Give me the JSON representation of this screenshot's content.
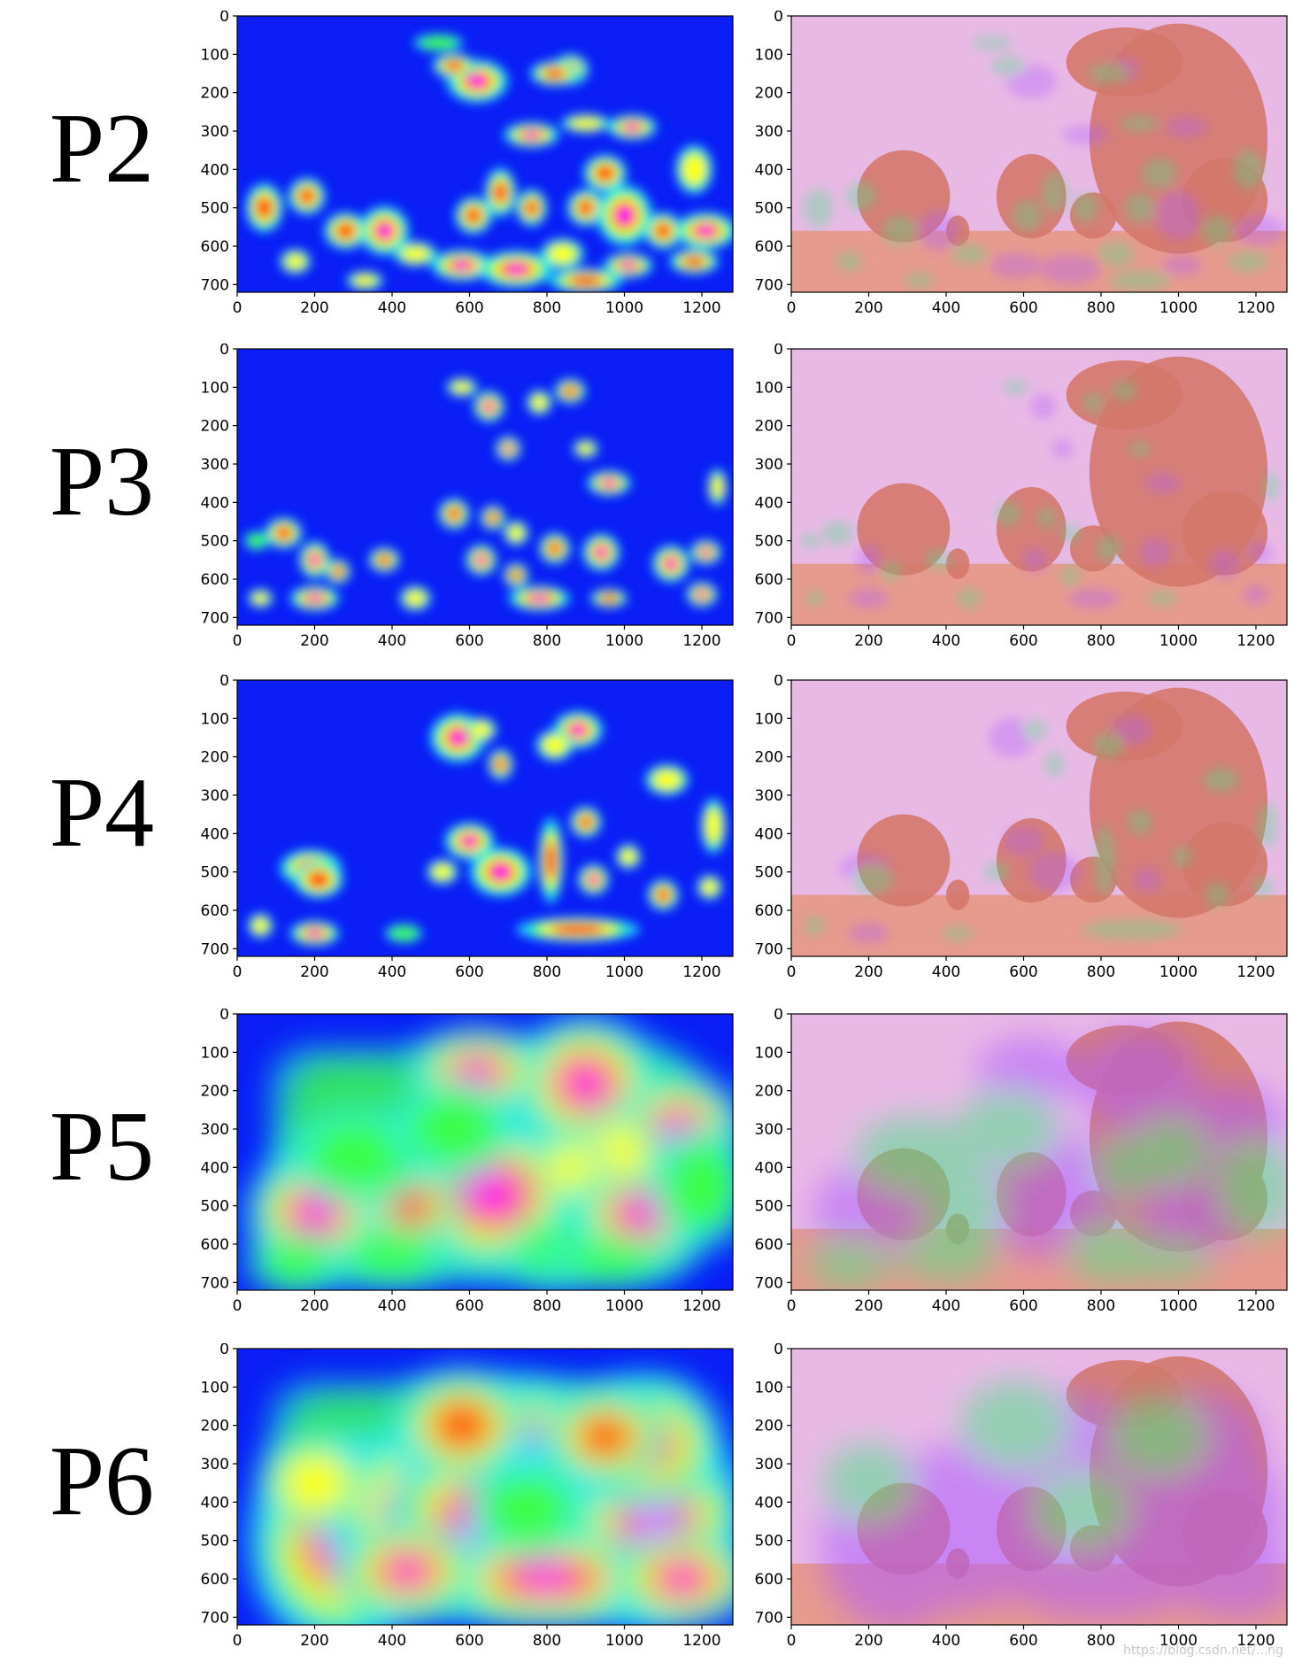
{
  "figure": {
    "rows": [
      {
        "label": "P2",
        "heat_blobs": [
          [
            520,
            70,
            40,
            14,
            0.6
          ],
          [
            620,
            170,
            50,
            35,
            0.95
          ],
          [
            560,
            130,
            35,
            20,
            0.8
          ],
          [
            860,
            140,
            30,
            25,
            0.9
          ],
          [
            820,
            150,
            40,
            20,
            0.8
          ],
          [
            760,
            310,
            45,
            20,
            0.95
          ],
          [
            1020,
            290,
            40,
            20,
            0.9
          ],
          [
            900,
            280,
            40,
            15,
            0.7
          ],
          [
            950,
            410,
            35,
            30,
            0.8
          ],
          [
            1180,
            400,
            30,
            40,
            0.7
          ],
          [
            680,
            460,
            25,
            40,
            0.8
          ],
          [
            760,
            500,
            25,
            30,
            0.85
          ],
          [
            900,
            500,
            30,
            30,
            0.85
          ],
          [
            1000,
            520,
            45,
            50,
            0.9
          ],
          [
            1210,
            560,
            50,
            30,
            1.0
          ],
          [
            1100,
            560,
            30,
            30,
            0.8
          ],
          [
            70,
            500,
            30,
            40,
            0.8
          ],
          [
            180,
            470,
            30,
            30,
            0.8
          ],
          [
            280,
            560,
            35,
            30,
            0.85
          ],
          [
            380,
            560,
            40,
            40,
            0.9
          ],
          [
            460,
            620,
            35,
            20,
            0.7
          ],
          [
            580,
            650,
            50,
            25,
            0.9
          ],
          [
            720,
            660,
            60,
            30,
            0.9
          ],
          [
            900,
            690,
            60,
            20,
            0.8
          ],
          [
            1010,
            650,
            40,
            20,
            0.9
          ],
          [
            1180,
            640,
            40,
            20,
            0.8
          ],
          [
            150,
            640,
            25,
            20,
            0.7
          ],
          [
            330,
            690,
            30,
            15,
            0.7
          ],
          [
            610,
            520,
            30,
            30,
            0.85
          ],
          [
            840,
            620,
            35,
            25,
            0.75
          ]
        ]
      },
      {
        "label": "P3",
        "heat_blobs": [
          [
            580,
            100,
            25,
            15,
            0.7
          ],
          [
            650,
            150,
            25,
            25,
            0.95
          ],
          [
            860,
            110,
            25,
            20,
            0.8
          ],
          [
            780,
            140,
            20,
            20,
            0.75
          ],
          [
            700,
            260,
            20,
            20,
            0.9
          ],
          [
            900,
            260,
            20,
            15,
            0.7
          ],
          [
            960,
            350,
            35,
            20,
            0.9
          ],
          [
            1240,
            360,
            15,
            30,
            0.7
          ],
          [
            560,
            430,
            25,
            25,
            0.85
          ],
          [
            660,
            440,
            20,
            20,
            0.8
          ],
          [
            720,
            480,
            20,
            20,
            0.75
          ],
          [
            820,
            520,
            25,
            25,
            0.85
          ],
          [
            940,
            530,
            30,
            30,
            0.9
          ],
          [
            1120,
            560,
            30,
            30,
            0.95
          ],
          [
            1210,
            530,
            25,
            20,
            0.9
          ],
          [
            120,
            480,
            30,
            25,
            0.8
          ],
          [
            200,
            550,
            25,
            30,
            0.9
          ],
          [
            260,
            580,
            20,
            20,
            0.8
          ],
          [
            380,
            550,
            25,
            20,
            0.8
          ],
          [
            630,
            550,
            25,
            25,
            0.95
          ],
          [
            720,
            590,
            20,
            20,
            0.85
          ],
          [
            460,
            650,
            25,
            20,
            0.75
          ],
          [
            780,
            650,
            50,
            20,
            0.9
          ],
          [
            960,
            650,
            30,
            15,
            0.8
          ],
          [
            200,
            650,
            40,
            20,
            0.9
          ],
          [
            1200,
            640,
            25,
            20,
            0.9
          ],
          [
            60,
            650,
            20,
            15,
            0.7
          ],
          [
            50,
            500,
            20,
            15,
            0.6
          ]
        ]
      },
      {
        "label": "P4",
        "heat_blobs": [
          [
            570,
            150,
            45,
            40,
            0.9
          ],
          [
            630,
            130,
            25,
            20,
            0.7
          ],
          [
            880,
            130,
            40,
            30,
            0.95
          ],
          [
            820,
            170,
            30,
            25,
            0.75
          ],
          [
            680,
            220,
            20,
            25,
            0.8
          ],
          [
            1110,
            260,
            35,
            25,
            0.7
          ],
          [
            900,
            370,
            25,
            25,
            0.8
          ],
          [
            1230,
            380,
            20,
            45,
            0.75
          ],
          [
            600,
            420,
            40,
            30,
            0.9
          ],
          [
            680,
            500,
            50,
            40,
            0.95
          ],
          [
            810,
            470,
            20,
            70,
            0.85
          ],
          [
            920,
            520,
            25,
            25,
            0.9
          ],
          [
            1010,
            460,
            20,
            20,
            0.7
          ],
          [
            1100,
            560,
            25,
            25,
            0.85
          ],
          [
            530,
            500,
            25,
            20,
            0.7
          ],
          [
            190,
            490,
            50,
            30,
            1.0
          ],
          [
            210,
            520,
            40,
            30,
            0.85
          ],
          [
            200,
            660,
            40,
            20,
            0.9
          ],
          [
            60,
            640,
            20,
            20,
            0.7
          ],
          [
            880,
            650,
            100,
            20,
            0.85
          ],
          [
            1220,
            540,
            20,
            20,
            0.75
          ],
          [
            430,
            660,
            30,
            15,
            0.55
          ]
        ]
      },
      {
        "label": "P5",
        "heat_blobs": [
          [
            200,
            520,
            110,
            100,
            1.0
          ],
          [
            660,
            470,
            150,
            130,
            1.0
          ],
          [
            900,
            180,
            120,
            110,
            1.0
          ],
          [
            620,
            150,
            110,
            70,
            0.95
          ],
          [
            1140,
            300,
            110,
            90,
            1.0
          ],
          [
            1040,
            520,
            110,
            90,
            0.95
          ],
          [
            980,
            360,
            80,
            70,
            0.7
          ],
          [
            450,
            500,
            80,
            80,
            0.8
          ],
          [
            320,
            370,
            120,
            80,
            0.55
          ],
          [
            560,
            300,
            100,
            80,
            0.6
          ],
          [
            1200,
            450,
            80,
            100,
            0.6
          ],
          [
            820,
            620,
            80,
            60,
            0.6
          ],
          [
            150,
            650,
            80,
            50,
            0.6
          ],
          [
            400,
            630,
            100,
            50,
            0.5
          ],
          [
            860,
            400,
            60,
            60,
            0.75
          ],
          [
            960,
            640,
            100,
            40,
            0.55
          ]
        ]
      },
      {
        "label": "P6",
        "heat_blobs": [
          [
            270,
            500,
            150,
            180,
            0.95
          ],
          [
            480,
            440,
            160,
            160,
            1.0
          ],
          [
            700,
            250,
            180,
            110,
            0.95
          ],
          [
            620,
            450,
            150,
            140,
            1.0
          ],
          [
            900,
            450,
            150,
            160,
            0.95
          ],
          [
            1080,
            450,
            150,
            180,
            1.0
          ],
          [
            1050,
            250,
            130,
            110,
            0.9
          ],
          [
            800,
            600,
            200,
            80,
            0.9
          ],
          [
            440,
            580,
            120,
            80,
            0.9
          ],
          [
            580,
            200,
            110,
            90,
            0.85
          ],
          [
            950,
            230,
            100,
            80,
            0.8
          ],
          [
            200,
            350,
            90,
            80,
            0.75
          ],
          [
            1150,
            600,
            120,
            80,
            0.9
          ],
          [
            750,
            420,
            100,
            80,
            0.55
          ]
        ]
      }
    ],
    "watermark": "https://blog.csdn.net/...ng"
  },
  "chart_data": [
    {
      "type": "heatmap",
      "title": "",
      "row_label": "P2",
      "view": "feature heatmap",
      "xlim": [
        0,
        1280
      ],
      "ylim": [
        0,
        720
      ],
      "y_inverted": true,
      "xticks": [
        0,
        200,
        400,
        600,
        800,
        1000,
        1200
      ],
      "yticks": [
        0,
        100,
        200,
        300,
        400,
        500,
        600,
        700
      ],
      "colormap": "jet-like (blue→cyan→green→yellow→red→magenta)"
    },
    {
      "type": "heatmap",
      "title": "",
      "row_label": "P2",
      "view": "heatmap overlay on image",
      "xlim": [
        0,
        1280
      ],
      "ylim": [
        0,
        720
      ],
      "y_inverted": true,
      "xticks": [
        0,
        200,
        400,
        600,
        800,
        1000,
        1200
      ],
      "yticks": [
        0,
        100,
        200,
        300,
        400,
        500,
        600,
        700
      ]
    },
    {
      "type": "heatmap",
      "title": "",
      "row_label": "P3",
      "view": "feature heatmap",
      "xlim": [
        0,
        1280
      ],
      "ylim": [
        0,
        720
      ],
      "y_inverted": true,
      "xticks": [
        0,
        200,
        400,
        600,
        800,
        1000,
        1200
      ],
      "yticks": [
        0,
        100,
        200,
        300,
        400,
        500,
        600,
        700
      ]
    },
    {
      "type": "heatmap",
      "title": "",
      "row_label": "P3",
      "view": "heatmap overlay on image",
      "xlim": [
        0,
        1280
      ],
      "ylim": [
        0,
        720
      ],
      "y_inverted": true,
      "xticks": [
        0,
        200,
        400,
        600,
        800,
        1000,
        1200
      ],
      "yticks": [
        0,
        100,
        200,
        300,
        400,
        500,
        600,
        700
      ]
    },
    {
      "type": "heatmap",
      "title": "",
      "row_label": "P4",
      "view": "feature heatmap",
      "xlim": [
        0,
        1280
      ],
      "ylim": [
        0,
        720
      ],
      "y_inverted": true,
      "xticks": [
        0,
        200,
        400,
        600,
        800,
        1000,
        1200
      ],
      "yticks": [
        0,
        100,
        200,
        300,
        400,
        500,
        600,
        700
      ]
    },
    {
      "type": "heatmap",
      "title": "",
      "row_label": "P4",
      "view": "heatmap overlay on image",
      "xlim": [
        0,
        1280
      ],
      "ylim": [
        0,
        720
      ],
      "y_inverted": true,
      "xticks": [
        0,
        200,
        400,
        600,
        800,
        1000,
        1200
      ],
      "yticks": [
        0,
        100,
        200,
        300,
        400,
        500,
        600,
        700
      ]
    },
    {
      "type": "heatmap",
      "title": "",
      "row_label": "P5",
      "view": "feature heatmap",
      "xlim": [
        0,
        1280
      ],
      "ylim": [
        0,
        720
      ],
      "y_inverted": true,
      "xticks": [
        0,
        200,
        400,
        600,
        800,
        1000,
        1200
      ],
      "yticks": [
        0,
        100,
        200,
        300,
        400,
        500,
        600,
        700
      ]
    },
    {
      "type": "heatmap",
      "title": "",
      "row_label": "P5",
      "view": "heatmap overlay on image",
      "xlim": [
        0,
        1280
      ],
      "ylim": [
        0,
        720
      ],
      "y_inverted": true,
      "xticks": [
        0,
        200,
        400,
        600,
        800,
        1000,
        1200
      ],
      "yticks": [
        0,
        100,
        200,
        300,
        400,
        500,
        600,
        700
      ]
    },
    {
      "type": "heatmap",
      "title": "",
      "row_label": "P6",
      "view": "feature heatmap",
      "xlim": [
        0,
        1280
      ],
      "ylim": [
        0,
        720
      ],
      "y_inverted": true,
      "xticks": [
        0,
        200,
        400,
        600,
        800,
        1000,
        1200
      ],
      "yticks": [
        0,
        100,
        200,
        300,
        400,
        500,
        600,
        700
      ]
    },
    {
      "type": "heatmap",
      "title": "",
      "row_label": "P6",
      "view": "heatmap overlay on image",
      "xlim": [
        0,
        1280
      ],
      "ylim": [
        0,
        720
      ],
      "y_inverted": true,
      "xticks": [
        0,
        200,
        400,
        600,
        800,
        1000,
        1200
      ],
      "yticks": [
        0,
        100,
        200,
        300,
        400,
        500,
        600,
        700
      ]
    }
  ]
}
